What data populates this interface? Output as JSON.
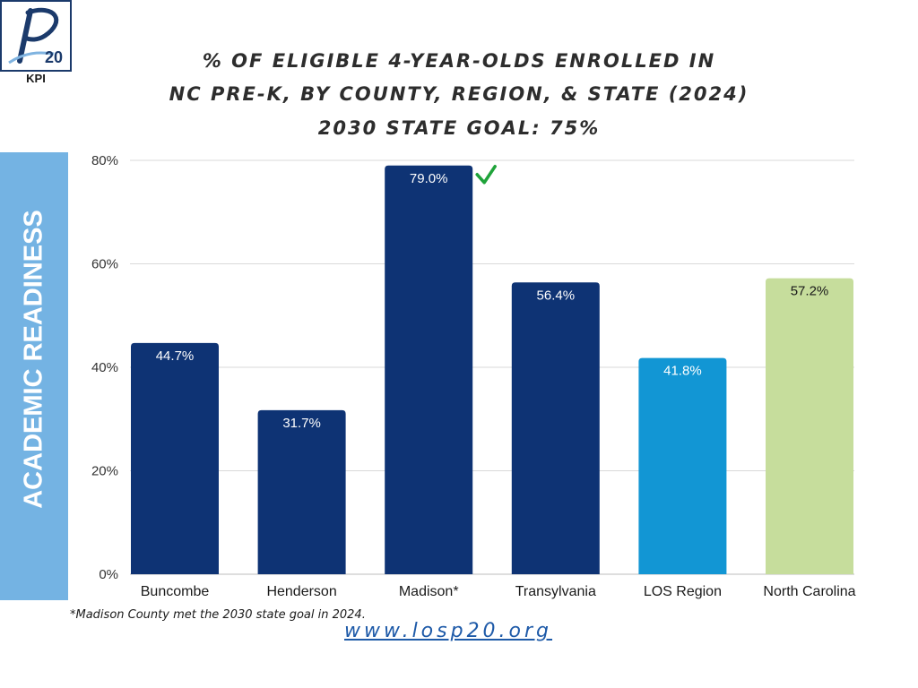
{
  "header": {
    "logo_text": "20",
    "logo_caption": "KPI",
    "title_lines": [
      "% OF ELIGIBLE 4-YEAR-OLDS ENROLLED IN",
      "NC PRE-K, BY COUNTY, REGION, & STATE (2024)",
      "2030 STATE GOAL: 75%"
    ]
  },
  "side_label": "ACADEMIC READINESS",
  "chart_data": {
    "type": "bar",
    "categories": [
      "Buncombe",
      "Henderson",
      "Madison*",
      "Transylvania",
      "LOS Region",
      "North Carolina"
    ],
    "values": [
      44.7,
      31.7,
      79.0,
      56.4,
      41.8,
      57.2
    ],
    "value_labels": [
      "44.7%",
      "31.7%",
      "79.0%",
      "56.4%",
      "41.8%",
      "57.2%"
    ],
    "colors": [
      "#0e3374",
      "#0e3374",
      "#0e3374",
      "#0e3374",
      "#1296d4",
      "#c6dd9c"
    ],
    "label_colors": [
      "#ffffff",
      "#ffffff",
      "#ffffff",
      "#ffffff",
      "#ffffff",
      "#1a1a1a"
    ],
    "ylim": [
      0,
      80
    ],
    "yticks": [
      0,
      20,
      40,
      60,
      80
    ],
    "ytick_labels": [
      "0%",
      "20%",
      "40%",
      "60%",
      "80%"
    ],
    "grid": true,
    "goal_met_marker_index": 2,
    "goal_met_marker_color": "#1fa33a"
  },
  "footnote": "*Madison County met the 2030 state goal in 2024.",
  "website": "www.losp20.org"
}
